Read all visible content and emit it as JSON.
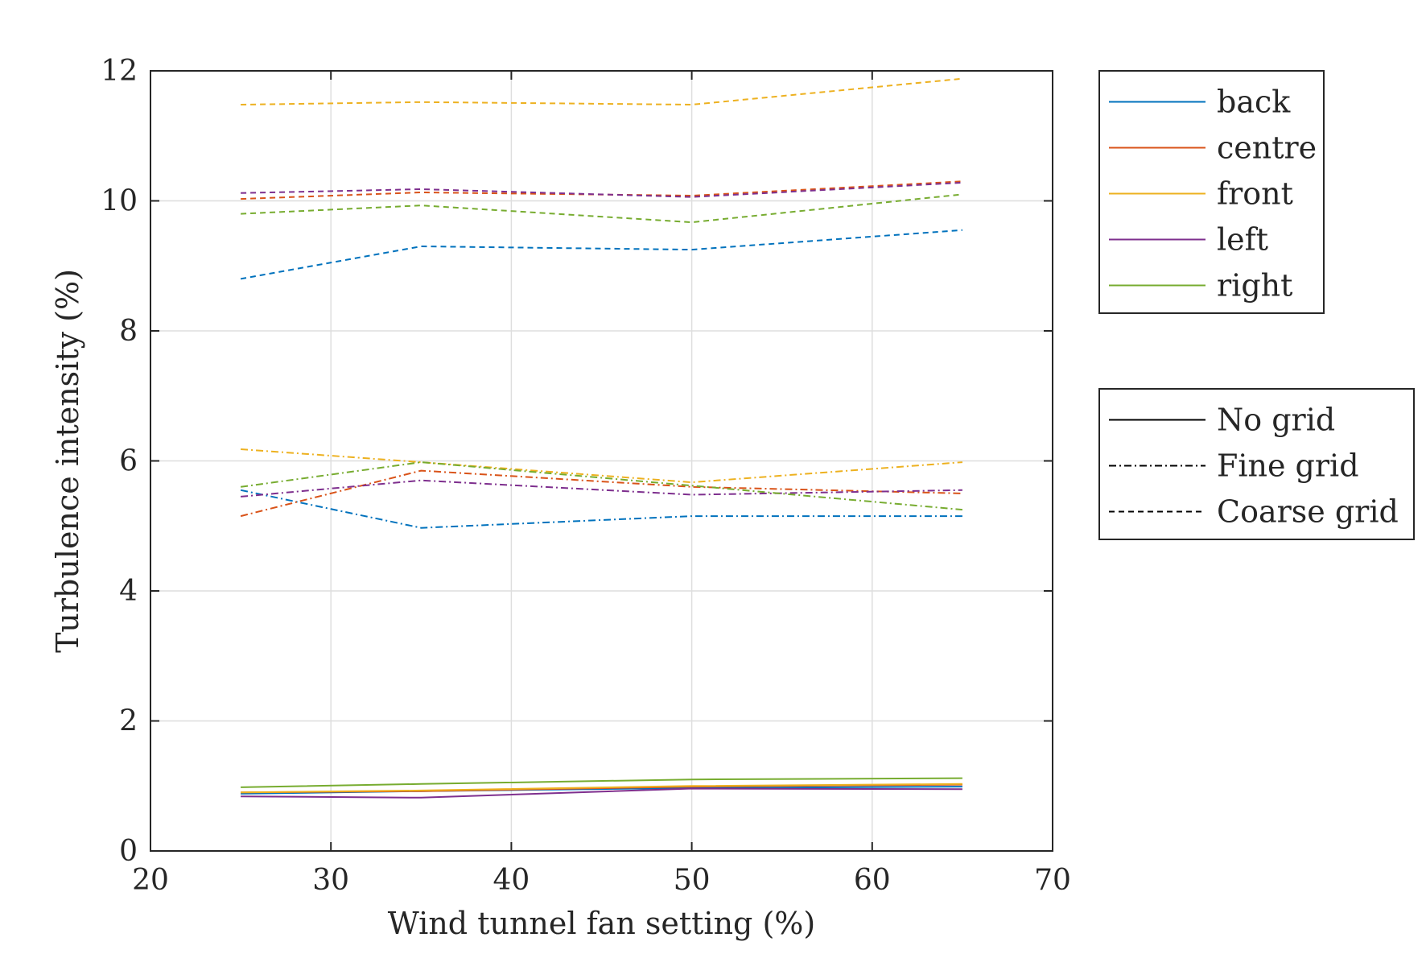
{
  "chart_data": {
    "type": "line",
    "title": "",
    "xlabel": "Wind tunnel fan setting (%)",
    "ylabel": "Turbulence intensity (%)",
    "xlim": [
      20,
      70
    ],
    "ylim": [
      0,
      12
    ],
    "xticks": [
      20,
      30,
      40,
      50,
      60,
      70
    ],
    "yticks": [
      0,
      2,
      4,
      6,
      8,
      10,
      12
    ],
    "grid": true,
    "x": [
      25,
      35,
      50,
      65
    ],
    "colors": {
      "back": "#0072BD",
      "centre": "#D95319",
      "front": "#EDB120",
      "left": "#7E2F8E",
      "right": "#77AC30"
    },
    "series": [
      {
        "name": "back",
        "grid": "No grid",
        "values": [
          0.88,
          0.92,
          0.97,
          0.99
        ]
      },
      {
        "name": "centre",
        "grid": "No grid",
        "values": [
          0.9,
          0.92,
          0.99,
          1.02
        ]
      },
      {
        "name": "front",
        "grid": "No grid",
        "values": [
          0.9,
          0.93,
          1.0,
          1.03
        ]
      },
      {
        "name": "left",
        "grid": "No grid",
        "values": [
          0.84,
          0.82,
          0.96,
          0.95
        ]
      },
      {
        "name": "right",
        "grid": "No grid",
        "values": [
          0.98,
          1.03,
          1.1,
          1.12
        ]
      },
      {
        "name": "back",
        "grid": "Fine grid",
        "values": [
          5.55,
          4.97,
          5.15,
          5.15
        ]
      },
      {
        "name": "centre",
        "grid": "Fine grid",
        "values": [
          5.15,
          5.85,
          5.6,
          5.5
        ]
      },
      {
        "name": "front",
        "grid": "Fine grid",
        "values": [
          6.18,
          5.98,
          5.67,
          5.98
        ]
      },
      {
        "name": "left",
        "grid": "Fine grid",
        "values": [
          5.45,
          5.7,
          5.48,
          5.55
        ]
      },
      {
        "name": "right",
        "grid": "Fine grid",
        "values": [
          5.6,
          5.98,
          5.62,
          5.25
        ]
      },
      {
        "name": "back",
        "grid": "Coarse grid",
        "values": [
          8.8,
          9.3,
          9.25,
          9.55
        ]
      },
      {
        "name": "centre",
        "grid": "Coarse grid",
        "values": [
          10.03,
          10.13,
          10.08,
          10.3
        ]
      },
      {
        "name": "front",
        "grid": "Coarse grid",
        "values": [
          11.48,
          11.52,
          11.48,
          11.88
        ]
      },
      {
        "name": "left",
        "grid": "Coarse grid",
        "values": [
          10.12,
          10.18,
          10.06,
          10.28
        ]
      },
      {
        "name": "right",
        "grid": "Coarse grid",
        "values": [
          9.8,
          9.93,
          9.67,
          10.1
        ]
      }
    ],
    "legend_colors": [
      {
        "label": "back",
        "color": "#0072BD"
      },
      {
        "label": "centre",
        "color": "#D95319"
      },
      {
        "label": "front",
        "color": "#EDB120"
      },
      {
        "label": "left",
        "color": "#7E2F8E"
      },
      {
        "label": "right",
        "color": "#77AC30"
      }
    ],
    "legend_styles": [
      {
        "label": "No grid",
        "dash": "solid"
      },
      {
        "label": "Fine grid",
        "dash": "dashdot"
      },
      {
        "label": "Coarse grid",
        "dash": "dashed"
      }
    ],
    "legend_placement": "outside-right"
  }
}
